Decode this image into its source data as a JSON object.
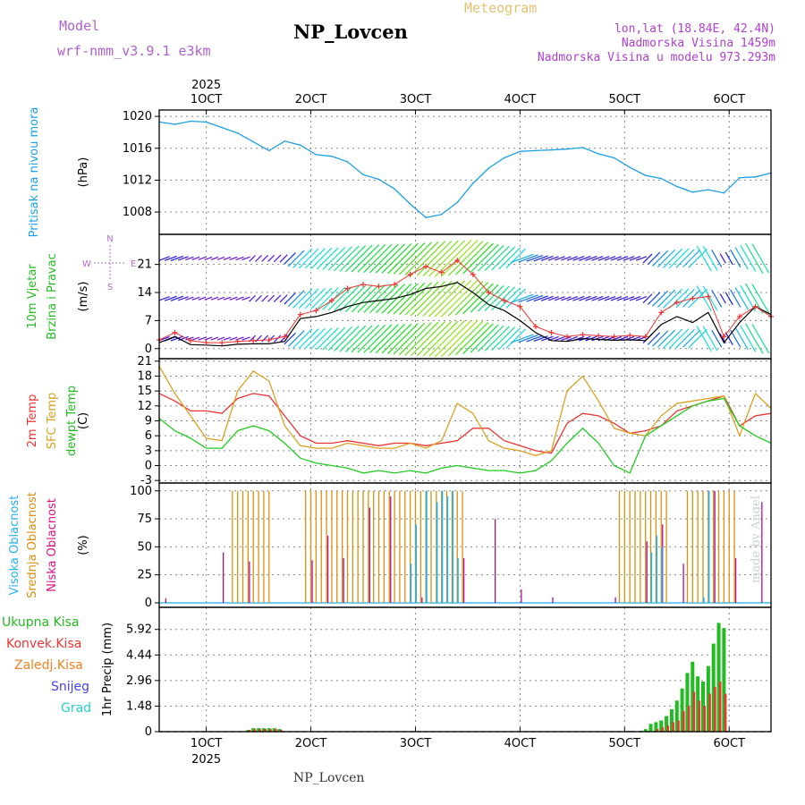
{
  "header": {
    "model_label": "Model",
    "model_name": "wrf-nmm_v3.9.1  e3km",
    "station_title": "NP_Lovcen",
    "meteogram_label": "Meteogram",
    "location": "lon,lat (18.84E, 42.4N)",
    "altitude": "Nadmorska Visina 1459m",
    "model_altitude": "Nadmorska Visina u modelu 973.293m",
    "footer_station": "NP_Lovcen",
    "credit": "made by Angel"
  },
  "colors": {
    "pressure": "#1aa0e6",
    "wind_arrows": "rainbow",
    "wind_speed": "#000000",
    "wind_gust": "#ee3333",
    "temp_2m": "#ee3333",
    "temp_sfc": "#dda020",
    "dewpoint": "#22cc22",
    "cloud_high": "#22b0ee",
    "cloud_mid": "#dd9010",
    "cloud_low": "#b01090",
    "precip_total": "#22bb22",
    "precip_conv": "#ee3333",
    "precip_frz": "#f08020",
    "precip_snow": "#4444ee",
    "precip_grad": "#22cccc"
  },
  "chart_data": {
    "type": "line",
    "time_axis": {
      "top_labels": [
        "1OCT",
        "2OCT",
        "3OCT",
        "4OCT",
        "5OCT",
        "6OCT"
      ],
      "bottom_labels": [
        "1OCT",
        "2OCT",
        "3OCT",
        "4OCT",
        "5OCT",
        "6OCT"
      ],
      "year": "2025",
      "range_hours": [
        -9,
        108
      ],
      "tick_hours": [
        0,
        20,
        40,
        60,
        80,
        100
      ]
    },
    "panels": [
      {
        "id": "pressure",
        "side_labels": [
          "Pritisak na nivou mora"
        ],
        "unit": "(hPa)",
        "yticks": [
          "1008",
          "1012",
          "1016",
          "1020"
        ],
        "ylim": [
          1005.2,
          1020.8
        ],
        "series": [
          {
            "name": "Pritisak na nivou mora",
            "x": [
              -9,
              -6,
              -3,
              0,
              3,
              6,
              9,
              12,
              15,
              18,
              21,
              24,
              27,
              30,
              33,
              36,
              39,
              42,
              45,
              48,
              51,
              54,
              57,
              60,
              63,
              66,
              69,
              72,
              75,
              78,
              81,
              84,
              87,
              90,
              93,
              96,
              99,
              102,
              105,
              108
            ],
            "y": [
              1019.3,
              1019.0,
              1019.4,
              1019.3,
              1018.6,
              1017.9,
              1016.8,
              1015.7,
              1016.9,
              1016.4,
              1015.2,
              1015.0,
              1014.3,
              1012.7,
              1012.1,
              1010.9,
              1009.0,
              1007.3,
              1007.7,
              1009.2,
              1011.6,
              1013.5,
              1014.8,
              1015.6,
              1015.7,
              1015.8,
              1015.9,
              1016.1,
              1015.3,
              1014.8,
              1013.6,
              1012.6,
              1012.2,
              1011.2,
              1010.5,
              1010.8,
              1010.4,
              1012.3,
              1012.4,
              1012.9
            ]
          }
        ]
      },
      {
        "id": "wind",
        "side_labels": [
          "10m Vjetar",
          "Brzina i Pravac"
        ],
        "unit": "(m/s)",
        "compass": {
          "n": "N",
          "w": "W",
          "e": "E",
          "s": "S"
        },
        "yticks": [
          "0",
          "7",
          "14",
          "21"
        ],
        "ylim": [
          -2.5,
          28.5
        ],
        "arrow_rows_ms": [
          2.5,
          12.5,
          22.5
        ],
        "series": [
          {
            "name": "brzina",
            "x": [
              -9,
              -6,
              -3,
              0,
              3,
              6,
              9,
              12,
              15,
              18,
              21,
              24,
              27,
              30,
              33,
              36,
              39,
              42,
              45,
              48,
              51,
              54,
              57,
              60,
              63,
              66,
              69,
              72,
              75,
              78,
              81,
              84,
              87,
              90,
              93,
              96,
              99,
              102,
              105,
              108
            ],
            "y": [
              1.5,
              3.0,
              1.0,
              0.9,
              0.7,
              1.1,
              1.2,
              1.2,
              1.8,
              7.5,
              8.0,
              9.0,
              10.5,
              11.5,
              12.0,
              12.5,
              13.5,
              15.0,
              15.5,
              16.5,
              14.0,
              11.0,
              9.5,
              7.0,
              4.0,
              2.0,
              1.8,
              2.5,
              2.3,
              2.1,
              2.2,
              2.0,
              6.0,
              8.0,
              6.5,
              9.0,
              1.5,
              6.5,
              10.5,
              8.5
            ]
          },
          {
            "name": "udar",
            "x": [
              -9,
              -6,
              -3,
              0,
              3,
              6,
              9,
              12,
              15,
              18,
              21,
              24,
              27,
              30,
              33,
              36,
              39,
              42,
              45,
              48,
              51,
              54,
              57,
              60,
              63,
              66,
              69,
              72,
              75,
              78,
              81,
              84,
              87,
              90,
              93,
              96,
              99,
              102,
              105,
              108
            ],
            "y": [
              2.2,
              4.0,
              2.0,
              1.5,
              1.5,
              1.8,
              2.0,
              2.2,
              3.0,
              8.5,
              9.5,
              12.0,
              15.0,
              16.0,
              15.5,
              16.0,
              18.5,
              20.5,
              19.0,
              22.0,
              18.5,
              14.0,
              12.0,
              10.5,
              5.5,
              4.0,
              3.0,
              3.5,
              3.2,
              3.0,
              3.3,
              3.0,
              9.0,
              11.5,
              12.5,
              13.0,
              3.0,
              8.0,
              10.5,
              8.0
            ]
          }
        ]
      },
      {
        "id": "temperature",
        "side_labels": [
          "2m Temp",
          "SFC Temp",
          "dewpt Temp"
        ],
        "unit": "(C)",
        "yticks": [
          "-3",
          "0",
          "3",
          "6",
          "9",
          "12",
          "15",
          "18",
          "21"
        ],
        "ylim": [
          -3.5,
          21.5
        ],
        "series": [
          {
            "name": "2m Temp",
            "x": [
              -9,
              -6,
              -3,
              0,
              3,
              6,
              9,
              12,
              15,
              18,
              21,
              24,
              27,
              30,
              33,
              36,
              39,
              42,
              45,
              48,
              51,
              54,
              57,
              60,
              63,
              66,
              69,
              72,
              75,
              78,
              81,
              84,
              87,
              90,
              93,
              96,
              99,
              102,
              105,
              108
            ],
            "y": [
              14.5,
              13.0,
              11.0,
              11.0,
              10.5,
              13.5,
              14.5,
              14.0,
              10.0,
              6.0,
              4.5,
              4.5,
              5.0,
              4.5,
              4.0,
              4.5,
              4.5,
              4.0,
              4.5,
              5.0,
              7.5,
              7.5,
              5.0,
              4.0,
              3.0,
              2.5,
              8.5,
              10.5,
              10.0,
              8.5,
              6.5,
              7.0,
              8.0,
              11.0,
              12.0,
              13.0,
              14.0,
              8.0,
              10.0,
              10.5
            ]
          },
          {
            "name": "SFC Temp",
            "x": [
              -9,
              -6,
              -3,
              0,
              3,
              6,
              9,
              12,
              15,
              18,
              21,
              24,
              27,
              30,
              33,
              36,
              39,
              42,
              45,
              48,
              51,
              54,
              57,
              60,
              63,
              66,
              69,
              72,
              75,
              78,
              81,
              84,
              87,
              90,
              93,
              96,
              99,
              102,
              105,
              108
            ],
            "y": [
              20.0,
              14.5,
              10.0,
              5.5,
              5.0,
              15.0,
              19.0,
              17.0,
              8.0,
              4.0,
              3.5,
              3.5,
              4.5,
              4.0,
              3.5,
              3.5,
              4.5,
              3.5,
              5.0,
              12.5,
              10.5,
              5.0,
              3.5,
              3.0,
              2.0,
              3.0,
              15.0,
              18.0,
              13.0,
              7.5,
              6.5,
              6.0,
              10.0,
              12.5,
              13.0,
              13.5,
              14.0,
              6.0,
              14.5,
              11.5
            ]
          },
          {
            "name": "dewpt Temp",
            "x": [
              -9,
              -6,
              -3,
              0,
              3,
              6,
              9,
              12,
              15,
              18,
              21,
              24,
              27,
              30,
              33,
              36,
              39,
              42,
              45,
              48,
              51,
              54,
              57,
              60,
              63,
              66,
              69,
              72,
              75,
              78,
              81,
              84,
              87,
              90,
              93,
              96,
              99,
              102,
              105,
              108
            ],
            "y": [
              9.5,
              7.0,
              5.5,
              3.5,
              3.5,
              7.0,
              8.0,
              7.0,
              4.5,
              1.5,
              0.5,
              0.0,
              -0.5,
              -1.5,
              -1.0,
              -1.5,
              -1.0,
              -1.5,
              -0.5,
              0.0,
              -0.5,
              -1.0,
              -1.0,
              -1.5,
              -1.0,
              1.0,
              4.5,
              7.5,
              4.5,
              0.0,
              -1.5,
              6.0,
              8.0,
              10.0,
              12.0,
              13.0,
              13.5,
              8.0,
              6.0,
              4.5
            ]
          }
        ]
      },
      {
        "id": "clouds",
        "side_labels": [
          "Visoka Oblacnost",
          "Srednja Oblacnost",
          "Niska Oblacnost"
        ],
        "unit": "(%)",
        "yticks": [
          "0",
          "25",
          "50",
          "75",
          "100"
        ],
        "ylim": [
          -4,
          107
        ],
        "series": [
          {
            "name": "Srednja Oblacnost",
            "type": "bar",
            "x_ranges_hours": [
              [
                5,
                12
              ],
              [
                19,
                40
              ],
              [
                41,
                49
              ],
              [
                79,
                88
              ],
              [
                92,
                101
              ]
            ],
            "value": 100
          },
          {
            "name": "Niska Oblacnost",
            "type": "bar",
            "x_hours": [
              -8,
              3,
              8,
              20,
              23,
              26,
              31,
              35,
              41,
              49,
              55,
              60,
              66,
              78,
              84,
              87,
              91,
              97,
              101,
              106
            ],
            "values": [
              4,
              45,
              37,
              38,
              60,
              40,
              85,
              95,
              5,
              40,
              75,
              12,
              5,
              5,
              55,
              70,
              35,
              100,
              40,
              90
            ]
          },
          {
            "name": "Visoka Oblacnost",
            "type": "bar",
            "x_hours": [
              39,
              40,
              42,
              44,
              45,
              46,
              47,
              48,
              85,
              86,
              87,
              95,
              96
            ],
            "values": [
              35,
              70,
              100,
              90,
              100,
              95,
              100,
              40,
              45,
              60,
              50,
              5,
              100
            ]
          }
        ]
      },
      {
        "id": "precipitation",
        "legend": [
          "Ukupna Kisa",
          "Konvek.Kisa",
          "Zaledj.Kisa",
          "Snijeg",
          "Grad"
        ],
        "unit": "1hr Precip (mm)",
        "yticks": [
          "0",
          "1.48",
          "2.96",
          "4.44",
          "5.92"
        ],
        "ylim": [
          0,
          7.2
        ],
        "series": [
          {
            "name": "Ukupna Kisa",
            "type": "bar",
            "x": [
              8,
              9,
              10,
              11,
              12,
              13,
              14,
              81,
              83,
              84,
              85,
              86,
              87,
              88,
              89,
              90,
              91,
              92,
              93,
              94,
              95,
              96,
              97,
              98,
              99
            ],
            "y": [
              0.1,
              0.2,
              0.2,
              0.2,
              0.2,
              0.2,
              0.15,
              0.05,
              0.05,
              0.15,
              0.45,
              0.55,
              0.65,
              0.9,
              1.3,
              1.8,
              2.5,
              3.4,
              4.05,
              3.2,
              2.9,
              3.8,
              5.1,
              6.3,
              6.0
            ]
          },
          {
            "name": "Konvek.Kisa",
            "type": "bar",
            "x": [
              8,
              9,
              10,
              11,
              12,
              13,
              14,
              86,
              87,
              88,
              89,
              90,
              91,
              92,
              93,
              94,
              95,
              96,
              97,
              98,
              99
            ],
            "y": [
              0.1,
              0.15,
              0.15,
              0.15,
              0.15,
              0.15,
              0.1,
              0.15,
              0.25,
              0.35,
              0.55,
              0.65,
              1.2,
              1.5,
              2.3,
              1.8,
              1.5,
              2.2,
              2.6,
              2.9,
              2.2
            ]
          }
        ]
      }
    ]
  }
}
